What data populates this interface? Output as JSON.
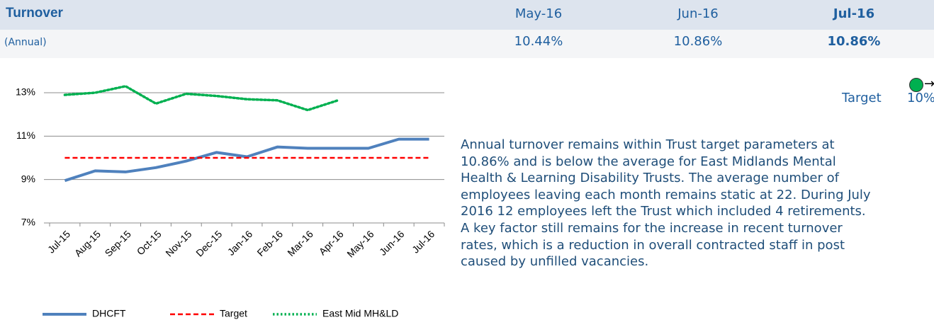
{
  "header": {
    "title": "Turnover",
    "subtitle": "(Annual)",
    "months": [
      "May-16",
      "Jun-16",
      "Jul-16"
    ],
    "values": [
      "10.44%",
      "10.86%",
      "10.86%"
    ]
  },
  "target": {
    "label": "Target",
    "value": "10%"
  },
  "commentary": [
    "Annual turnover remains within Trust target parameters at",
    "10.86% and is below the average for East Midlands Mental",
    "Health & Learning Disability Trusts.  The average number of",
    "employees leaving each month remains static at 22.  During July",
    "2016 12 employees left the Trust which included 4 retirements.",
    "A key factor still remains for the increase in recent turnover",
    "rates, which is a reduction in overall contracted staff in post",
    "caused by unfilled vacancies."
  ],
  "chart_data": {
    "type": "line",
    "categories": [
      "Jul-15",
      "Aug-15",
      "Sep-15",
      "Oct-15",
      "Nov-15",
      "Dec-15",
      "Jan-16",
      "Feb-16",
      "Mar-16",
      "Apr-16",
      "May-16",
      "Jun-16",
      "Jul-16"
    ],
    "series": [
      {
        "name": "DHCFT",
        "color": "#4f81bd",
        "style": "solid",
        "values": [
          8.95,
          9.4,
          9.35,
          9.55,
          9.85,
          10.25,
          10.05,
          10.5,
          10.44,
          10.44,
          10.44,
          10.86,
          10.86
        ]
      },
      {
        "name": "Target",
        "color": "#ff0000",
        "style": "dashed",
        "values": [
          10,
          10,
          10,
          10,
          10,
          10,
          10,
          10,
          10,
          10,
          10,
          10,
          10
        ]
      },
      {
        "name": "East Mid MH&LD",
        "color": "#00b050",
        "style": "dotted",
        "values": [
          12.9,
          13.0,
          13.3,
          12.5,
          12.95,
          12.85,
          12.7,
          12.65,
          12.2,
          12.65,
          null,
          null,
          null
        ]
      }
    ],
    "ylim": [
      7,
      13
    ],
    "yticks": [
      {
        "value": 7,
        "label": "7%"
      },
      {
        "value": 9,
        "label": "9%"
      },
      {
        "value": 11,
        "label": "11%"
      },
      {
        "value": 13,
        "label": "13%"
      }
    ],
    "grid": true,
    "legend": "bottom"
  }
}
